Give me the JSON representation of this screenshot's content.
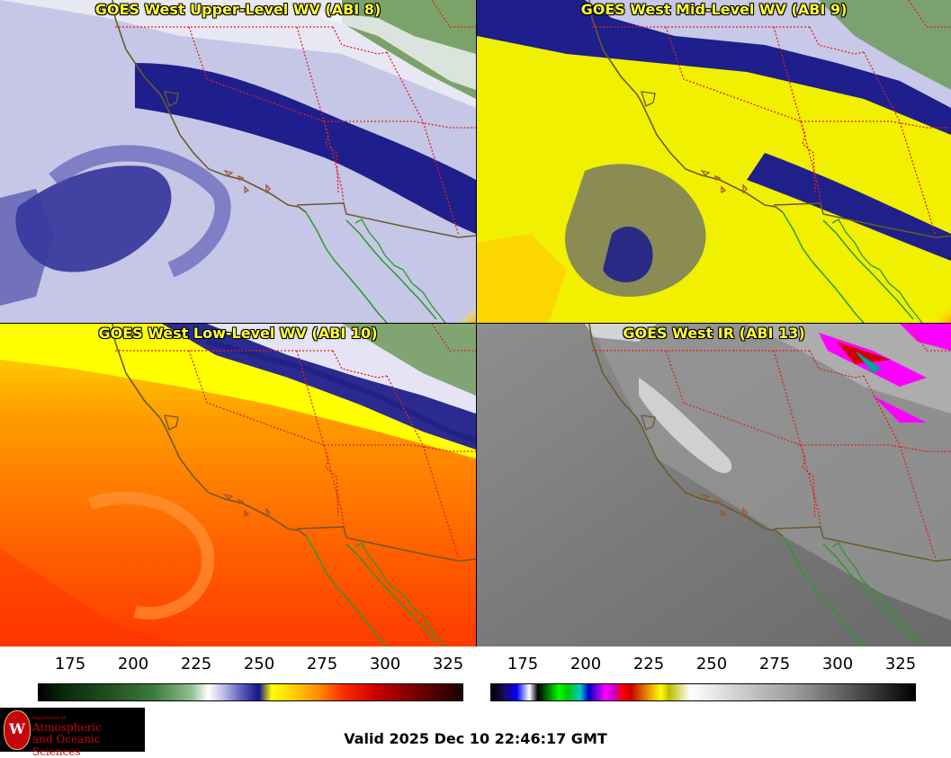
{
  "panels": [
    {
      "title": "GOES West Upper-Level WV (ABI 8)",
      "colormap": "water-vapor"
    },
    {
      "title": "GOES West Mid-Level WV (ABI 9)",
      "colormap": "water-vapor"
    },
    {
      "title": "GOES West Low-Level WV (ABI 10)",
      "colormap": "water-vapor"
    },
    {
      "title": "GOES West IR (ABI 13)",
      "colormap": "infrared"
    }
  ],
  "colorbars": [
    {
      "ticks": [
        "175",
        "200",
        "225",
        "250",
        "275",
        "300",
        "325"
      ],
      "range": [
        163,
        332
      ]
    },
    {
      "ticks": [
        "175",
        "200",
        "225",
        "250",
        "275",
        "300",
        "325"
      ],
      "range": [
        163,
        332
      ]
    }
  ],
  "logo": {
    "small": "Department of",
    "line1": "Atmospheric",
    "line2": "and Oceanic Sciences",
    "emblem": "uw-crest"
  },
  "valid_time": "Valid 2025 Dec 10 22:46:17 GMT",
  "colors": {
    "title_text": "#ffff33",
    "state_borders": "#e02020",
    "coastline": "#6b5a2a",
    "mexico_coast": "#2a9a2a"
  }
}
